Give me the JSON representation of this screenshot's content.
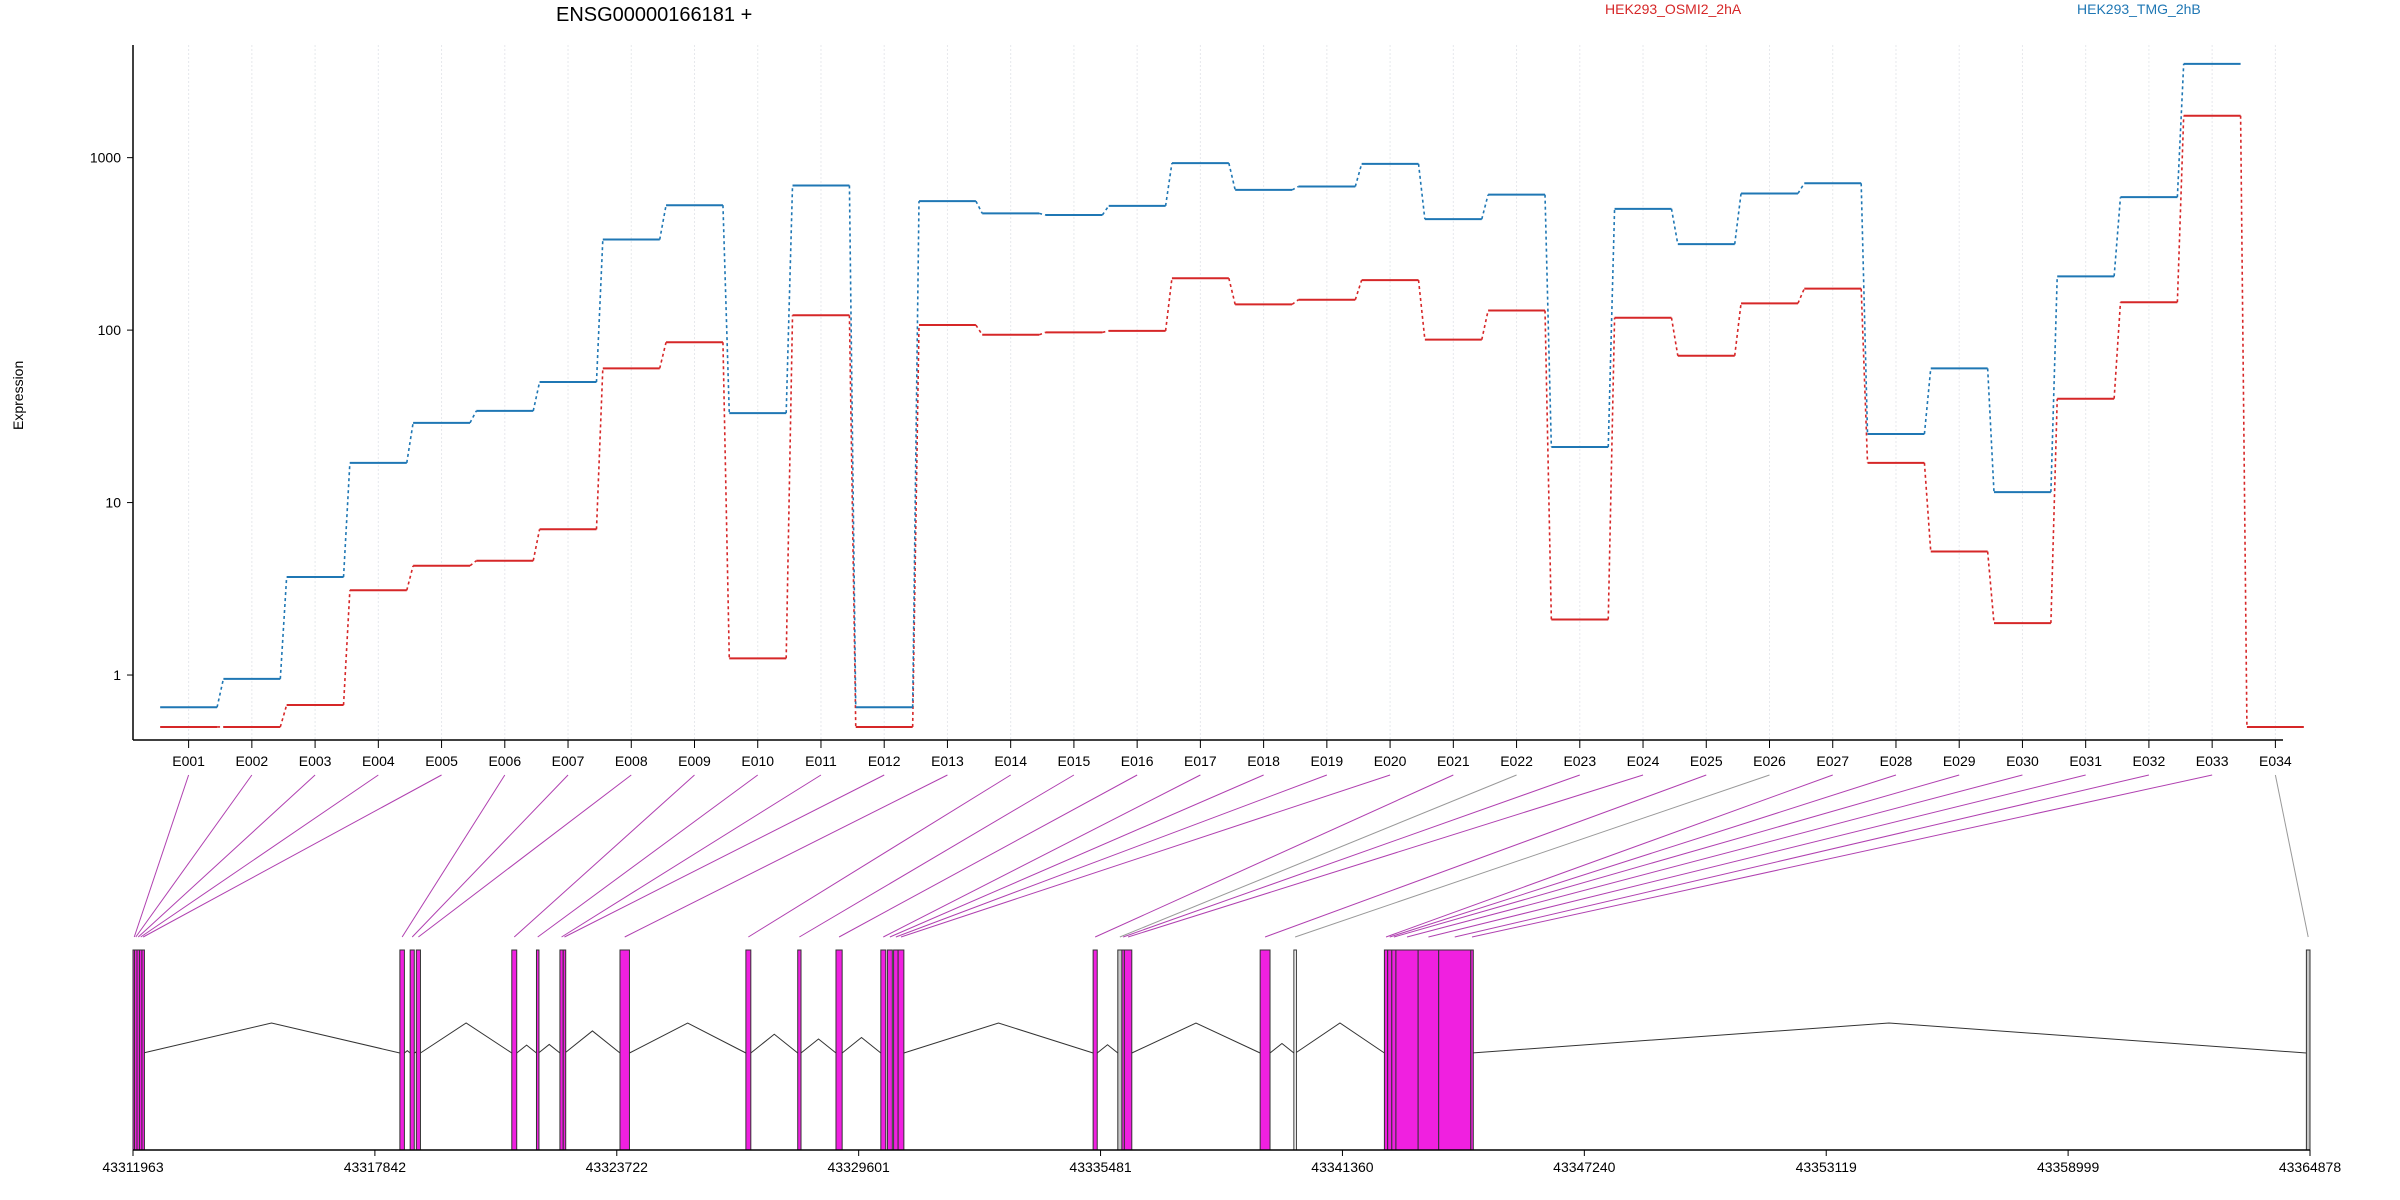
{
  "chart_data": {
    "type": "line",
    "title": "ENSG00000166181 +",
    "ylabel": "Expression",
    "yscale": "log",
    "ylim": [
      0.42,
      4500
    ],
    "yticks": [
      1,
      10,
      100,
      1000
    ],
    "ytick_labels": [
      "1",
      "10",
      "100",
      "1000"
    ],
    "grid": "vertical",
    "legend_position": "top-right",
    "categories": [
      "E001",
      "E002",
      "E003",
      "E004",
      "E005",
      "E006",
      "E007",
      "E008",
      "E009",
      "E010",
      "E011",
      "E012",
      "E013",
      "E014",
      "E015",
      "E016",
      "E017",
      "E018",
      "E019",
      "E020",
      "E021",
      "E022",
      "E023",
      "E024",
      "E025",
      "E026",
      "E027",
      "E028",
      "E029",
      "E030",
      "E031",
      "E032",
      "E033",
      "E034"
    ],
    "series": [
      {
        "name": "HEK293_OSMI2_2hA",
        "color": "#d62728",
        "values": [
          0.5,
          0.5,
          0.67,
          3.1,
          4.3,
          4.6,
          7,
          60,
          85,
          1.25,
          122,
          0.5,
          107,
          94,
          97,
          99,
          200,
          141,
          150,
          195,
          88,
          130,
          2.1,
          118,
          71,
          143,
          174,
          17,
          5.2,
          2,
          40,
          145,
          1750,
          0.5
        ]
      },
      {
        "name": "HEK293_TMG_2hB",
        "color": "#1f77b4",
        "values": [
          0.65,
          0.95,
          3.7,
          17,
          29,
          34,
          50,
          335,
          530,
          33,
          690,
          0.65,
          560,
          475,
          465,
          525,
          930,
          650,
          680,
          920,
          440,
          610,
          21,
          505,
          315,
          620,
          710,
          25,
          60,
          11.5,
          205,
          590,
          3500,
          null
        ]
      }
    ],
    "genomic_axis": {
      "tick_labels": [
        "43311963",
        "43317842",
        "43323722",
        "43329601",
        "43335481",
        "43341360",
        "43347240",
        "43353119",
        "43358999",
        "43364878"
      ],
      "range": [
        43311963,
        43364878
      ]
    },
    "exons": [
      {
        "id": "E001",
        "start": 43311963,
        "end": 43312000,
        "color": "#f020e0"
      },
      {
        "id": "E002",
        "start": 43312000,
        "end": 43312060,
        "color": "#f020e0"
      },
      {
        "id": "E003",
        "start": 43312060,
        "end": 43312120,
        "color": "#f020e0"
      },
      {
        "id": "E004",
        "start": 43312120,
        "end": 43312180,
        "color": "#f020e0"
      },
      {
        "id": "E005",
        "start": 43312180,
        "end": 43312210,
        "color": "#f020e0"
      },
      {
        "id": "E006",
        "start": 43318450,
        "end": 43318560,
        "color": "#f020e0"
      },
      {
        "id": "E007",
        "start": 43318700,
        "end": 43318800,
        "color": "#f020e0"
      },
      {
        "id": "E008",
        "start": 43318850,
        "end": 43318950,
        "color": "#f020e0"
      },
      {
        "id": "E009",
        "start": 43321170,
        "end": 43321290,
        "color": "#f020e0"
      },
      {
        "id": "E010",
        "start": 43321770,
        "end": 43321820,
        "color": "#f020e0"
      },
      {
        "id": "E011",
        "start": 43322340,
        "end": 43322420,
        "color": "#f020e0"
      },
      {
        "id": "E012",
        "start": 43322420,
        "end": 43322460,
        "color": "#f020e0"
      },
      {
        "id": "E013",
        "start": 43323800,
        "end": 43324030,
        "color": "#f020e0"
      },
      {
        "id": "E014",
        "start": 43326860,
        "end": 43326980,
        "color": "#f020e0"
      },
      {
        "id": "E015",
        "start": 43328120,
        "end": 43328200,
        "color": "#f020e0"
      },
      {
        "id": "E016",
        "start": 43329050,
        "end": 43329200,
        "color": "#f020e0"
      },
      {
        "id": "E017",
        "start": 43330140,
        "end": 43330260,
        "color": "#f020e0"
      },
      {
        "id": "E018",
        "start": 43330300,
        "end": 43330420,
        "color": "#f020e0"
      },
      {
        "id": "E019",
        "start": 43330450,
        "end": 43330560,
        "color": "#f020e0"
      },
      {
        "id": "E020",
        "start": 43330560,
        "end": 43330700,
        "color": "#f020e0"
      },
      {
        "id": "E021",
        "start": 43335300,
        "end": 43335400,
        "color": "#f020e0"
      },
      {
        "id": "E022",
        "start": 43335900,
        "end": 43336000,
        "color": "#c8c8c8"
      },
      {
        "id": "E023",
        "start": 43336000,
        "end": 43336060,
        "color": "#f020e0"
      },
      {
        "id": "E024",
        "start": 43336060,
        "end": 43336240,
        "color": "#f020e0"
      },
      {
        "id": "E025",
        "start": 43339360,
        "end": 43339600,
        "color": "#f020e0"
      },
      {
        "id": "E026",
        "start": 43340180,
        "end": 43340220,
        "color": "#ffffff"
      },
      {
        "id": "E027",
        "start": 43342380,
        "end": 43342460,
        "color": "#f020e0"
      },
      {
        "id": "E028",
        "start": 43342460,
        "end": 43342560,
        "color": "#f020e0"
      },
      {
        "id": "E029",
        "start": 43342560,
        "end": 43342660,
        "color": "#f020e0"
      },
      {
        "id": "E030",
        "start": 43342660,
        "end": 43343200,
        "color": "#f020e0"
      },
      {
        "id": "E031",
        "start": 43343200,
        "end": 43343700,
        "color": "#f020e0"
      },
      {
        "id": "E032",
        "start": 43343700,
        "end": 43344480,
        "color": "#f020e0"
      },
      {
        "id": "E033",
        "start": 43344480,
        "end": 43344500,
        "color": "#f020e0"
      },
      {
        "id": "E034",
        "start": 43364790,
        "end": 43364878,
        "color": "#c8c8c8"
      }
    ],
    "introns": [
      [
        43312210,
        43318450
      ],
      [
        43318560,
        43318700
      ],
      [
        43318800,
        43318850
      ],
      [
        43318950,
        43321170
      ],
      [
        43321290,
        43321770
      ],
      [
        43321820,
        43322340
      ],
      [
        43322460,
        43323800
      ],
      [
        43324030,
        43326860
      ],
      [
        43326980,
        43328120
      ],
      [
        43328200,
        43329050
      ],
      [
        43329200,
        43330140
      ],
      [
        43330700,
        43335300
      ],
      [
        43335400,
        43335900
      ],
      [
        43336240,
        43339360
      ],
      [
        43339600,
        43340180
      ],
      [
        43340220,
        43342380
      ],
      [
        43344500,
        43364790
      ]
    ]
  }
}
